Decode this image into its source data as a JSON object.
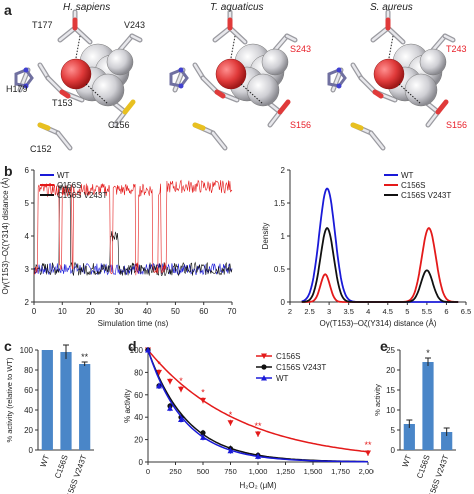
{
  "panels": {
    "a": {
      "label": "a",
      "structures": [
        {
          "species": "H. sapiens",
          "labels": {
            "t177": "T177",
            "v243": "V243",
            "h179": "H179",
            "t153": "T153",
            "c156": "C156",
            "c152": "C152"
          }
        },
        {
          "species": "T. aquaticus",
          "labels": {
            "s243": "S243",
            "s156": "S156"
          }
        },
        {
          "species": "S. aureus",
          "labels": {
            "t243": "T243",
            "s156": "S156"
          }
        }
      ],
      "colors": {
        "red_label": "#e8202a",
        "sphere_red": "#e03a3a",
        "sphere_grey": "#c8c8cc",
        "sulfur": "#e8c020",
        "nitrogen": "#4040d0"
      }
    },
    "b": {
      "label": "b"
    },
    "c": {
      "label": "c"
    },
    "d": {
      "label": "d"
    },
    "e": {
      "label": "e"
    }
  },
  "chart_data": [
    {
      "id": "b-left",
      "type": "line",
      "xlabel": "Simulation time (ns)",
      "ylabel": "Oγ(T153)–Oζ(Y314) distance (Å)",
      "xlim": [
        0,
        70
      ],
      "ylim": [
        2,
        6
      ],
      "xticks": [
        "0",
        "10",
        "20",
        "30",
        "40",
        "50",
        "60",
        "70"
      ],
      "yticks": [
        "2",
        "3",
        "4",
        "5",
        "6"
      ],
      "legend": {
        "position": "top-left",
        "entries": [
          "WT",
          "C156S",
          "C156S V243T"
        ]
      },
      "series": [
        {
          "name": "WT",
          "color": "#1a1ad8",
          "level_mean": 3.0,
          "noise": 0.35
        },
        {
          "name": "C156S",
          "color": "#e41a1a",
          "states": [
            [
              0,
              1.5,
              3.0
            ],
            [
              1.5,
              9,
              5.4
            ],
            [
              9,
              10,
              3.0
            ],
            [
              10,
              13.5,
              5.4
            ],
            [
              13.5,
              14,
              3.0
            ],
            [
              14,
              27,
              5.4
            ],
            [
              27,
              28,
              3.0
            ],
            [
              28,
              36,
              5.4
            ],
            [
              36,
              37,
              3.0
            ],
            [
              37,
              42,
              5.4
            ],
            [
              42,
              44,
              3.0
            ],
            [
              44,
              45,
              5.4
            ],
            [
              45,
              47,
              3.0
            ],
            [
              47,
              70,
              5.5
            ]
          ]
        },
        {
          "name": "C156S V243T",
          "color": "#111111",
          "states": [
            [
              0,
              9,
              3.0
            ],
            [
              9,
              13,
              5.5
            ],
            [
              13,
              15,
              3.0
            ],
            [
              15,
              27,
              3.0
            ],
            [
              27,
              30,
              4.0
            ],
            [
              30,
              70,
              3.0
            ]
          ]
        }
      ]
    },
    {
      "id": "b-right",
      "type": "line",
      "xlabel": "Oγ(T153)–Oζ(Y314) distance (Å)",
      "ylabel": "Density",
      "xlim": [
        2,
        6.5
      ],
      "ylim": [
        0,
        2
      ],
      "xticks": [
        "2",
        "2.5",
        "3",
        "3.5",
        "4",
        "4.5",
        "5",
        "5.5",
        "6",
        "6.5"
      ],
      "yticks": [
        "0",
        "0.5",
        "1",
        "1.5",
        "2"
      ],
      "legend": {
        "position": "top-right",
        "entries": [
          "WT",
          "C156S",
          "C156S V243T"
        ]
      },
      "series": [
        {
          "name": "WT",
          "color": "#1a1ad8",
          "peaks": [
            [
              2.95,
              1.72,
              0.2
            ]
          ]
        },
        {
          "name": "C156S",
          "color": "#e41a1a",
          "peaks": [
            [
              2.9,
              0.42,
              0.12
            ],
            [
              5.55,
              1.12,
              0.18
            ]
          ]
        },
        {
          "name": "C156S V243T",
          "color": "#111111",
          "peaks": [
            [
              2.95,
              1.12,
              0.17
            ],
            [
              5.5,
              0.48,
              0.15
            ]
          ]
        }
      ]
    },
    {
      "id": "c",
      "type": "bar",
      "ylabel": "% activity (relative to WT)",
      "ylim": [
        0,
        100
      ],
      "yticks": [
        "0",
        "20",
        "40",
        "60",
        "80",
        "100"
      ],
      "categories": [
        "WT",
        "C156S",
        "C156S V243T"
      ],
      "values": [
        100,
        98,
        86
      ],
      "errors": [
        0,
        7,
        2
      ],
      "annotations": [
        "",
        "",
        "**"
      ]
    },
    {
      "id": "d",
      "type": "line",
      "xlabel": "H₂O₂ (μM)",
      "ylabel": "% activity",
      "xlim": [
        0,
        2000
      ],
      "ylim": [
        0,
        100
      ],
      "xticks": [
        "0",
        "250",
        "500",
        "750",
        "1,000",
        "1,250",
        "1,500",
        "1,750",
        "2,000"
      ],
      "yticks": [
        "0",
        "20",
        "40",
        "60",
        "80",
        "100"
      ],
      "legend": {
        "position": "top-right",
        "entries": [
          "C156S",
          "C156S V243T",
          "WT"
        ]
      },
      "x": [
        0,
        100,
        200,
        300,
        500,
        750,
        1000,
        2000
      ],
      "series": [
        {
          "name": "C156S",
          "color": "#e41a1a",
          "marker": "triangle-down",
          "values": [
            100,
            80,
            72,
            65,
            55,
            35,
            25,
            8
          ],
          "annotations": [
            "",
            "*",
            "",
            "*",
            "*",
            "*",
            "**",
            "**"
          ]
        },
        {
          "name": "C156S V243T",
          "color": "#111111",
          "marker": "circle",
          "values": [
            100,
            68,
            50,
            40,
            26,
            12,
            6,
            null
          ]
        },
        {
          "name": "WT",
          "color": "#1a1ad8",
          "marker": "triangle-up",
          "values": [
            100,
            68,
            48,
            38,
            22,
            10,
            5,
            null
          ]
        }
      ]
    },
    {
      "id": "e",
      "type": "bar",
      "ylabel": "% activity",
      "ylim": [
        0,
        25
      ],
      "yticks": [
        "0",
        "5",
        "10",
        "15",
        "20",
        "25"
      ],
      "categories": [
        "WT",
        "C156S",
        "C156S V243T"
      ],
      "values": [
        6.5,
        22,
        4.5
      ],
      "errors": [
        1,
        1,
        1
      ],
      "annotations": [
        "",
        "*",
        ""
      ]
    }
  ]
}
